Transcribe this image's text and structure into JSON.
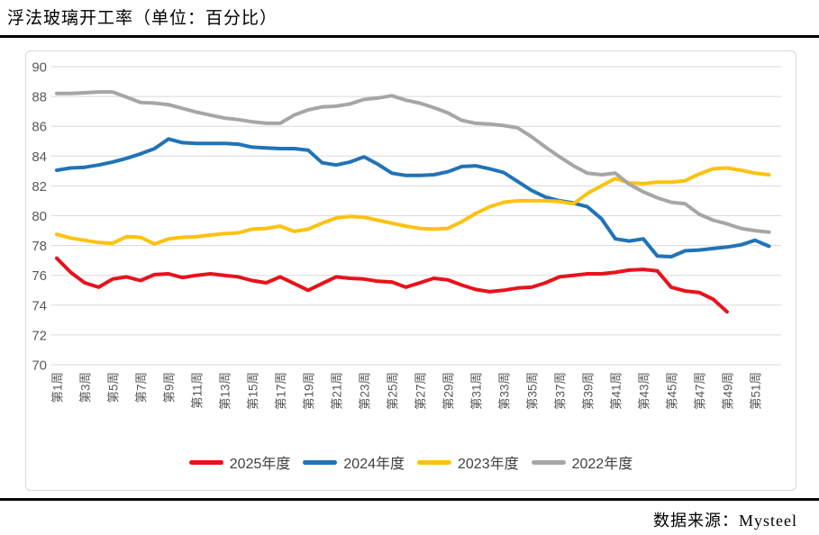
{
  "page": {
    "title": "浮法玻璃开工率（单位：百分比）",
    "source": "数据来源：Mysteel"
  },
  "chart_data": {
    "type": "line",
    "title": "浮法玻璃开工率（单位：百分比）",
    "ylabel": "",
    "xlabel": "",
    "ylim": [
      70,
      90
    ],
    "y_ticks": [
      90,
      88,
      86,
      84,
      82,
      80,
      78,
      76,
      74,
      72,
      70
    ],
    "x_tick_labels": [
      "第1周",
      "第3周",
      "第5周",
      "第7周",
      "第9周",
      "第11周",
      "第13周",
      "第15周",
      "第17周",
      "第19周",
      "第21周",
      "第23周",
      "第25周",
      "第27周",
      "第29周",
      "第31周",
      "第33周",
      "第35周",
      "第37周",
      "第39周",
      "第41周",
      "第43周",
      "第45周",
      "第47周",
      "第49周",
      "第51周"
    ],
    "x_weeks": 52,
    "grid": "horizontal",
    "grid_color": "#dadada",
    "tick_color": "#595959",
    "legend_position": "bottom",
    "series": [
      {
        "name": "2025年度",
        "color": "#e8121c",
        "start_week": 1,
        "values": [
          77.15,
          76.2,
          75.5,
          75.2,
          75.75,
          75.9,
          75.65,
          76.05,
          76.1,
          75.85,
          76.0,
          76.1,
          76.0,
          75.9,
          75.65,
          75.5,
          75.9,
          75.45,
          75.0,
          75.45,
          75.9,
          75.8,
          75.75,
          75.6,
          75.55,
          75.2,
          75.5,
          75.8,
          75.7,
          75.35,
          75.05,
          74.9,
          75.0,
          75.15,
          75.2,
          75.5,
          75.9,
          76.0,
          76.1,
          76.1,
          76.2,
          76.35,
          76.4,
          76.3,
          75.2,
          74.95,
          74.85,
          74.4,
          73.55
        ]
      },
      {
        "name": "2024年度",
        "color": "#2173b6",
        "start_week": 1,
        "values": [
          83.05,
          83.2,
          83.25,
          83.4,
          83.6,
          83.85,
          84.15,
          84.5,
          85.15,
          84.9,
          84.85,
          84.85,
          84.85,
          84.8,
          84.6,
          84.55,
          84.5,
          84.5,
          84.4,
          83.55,
          83.4,
          83.6,
          83.95,
          83.45,
          82.85,
          82.7,
          82.7,
          82.75,
          82.95,
          83.3,
          83.35,
          83.15,
          82.9,
          82.3,
          81.7,
          81.25,
          81.0,
          80.85,
          80.6,
          79.8,
          78.45,
          78.3,
          78.45,
          77.3,
          77.25,
          77.65,
          77.7,
          77.8,
          77.9,
          78.05,
          78.35,
          77.95
        ]
      },
      {
        "name": "2023年度",
        "color": "#fdc20f",
        "start_week": 1,
        "values": [
          78.75,
          78.5,
          78.35,
          78.2,
          78.15,
          78.6,
          78.55,
          78.1,
          78.45,
          78.55,
          78.6,
          78.7,
          78.8,
          78.85,
          79.1,
          79.15,
          79.3,
          78.95,
          79.1,
          79.5,
          79.85,
          79.95,
          79.9,
          79.7,
          79.5,
          79.3,
          79.15,
          79.1,
          79.15,
          79.6,
          80.15,
          80.6,
          80.9,
          81.0,
          81.0,
          81.0,
          80.95,
          80.8,
          81.5,
          82.0,
          82.5,
          82.2,
          82.15,
          82.25,
          82.25,
          82.35,
          82.8,
          83.15,
          83.2,
          83.05,
          82.85,
          82.75
        ]
      },
      {
        "name": "2022年度",
        "color": "#a6a6a6",
        "start_week": 1,
        "values": [
          88.2,
          88.2,
          88.25,
          88.3,
          88.3,
          87.95,
          87.6,
          87.55,
          87.45,
          87.2,
          86.95,
          86.75,
          86.55,
          86.45,
          86.3,
          86.2,
          86.2,
          86.75,
          87.1,
          87.3,
          87.35,
          87.5,
          87.8,
          87.9,
          88.05,
          87.75,
          87.55,
          87.25,
          86.9,
          86.4,
          86.2,
          86.15,
          86.05,
          85.9,
          85.3,
          84.6,
          83.95,
          83.35,
          82.85,
          82.75,
          82.85,
          82.1,
          81.6,
          81.2,
          80.9,
          80.8,
          80.1,
          79.7,
          79.45,
          79.15,
          79.0,
          78.9
        ]
      }
    ]
  }
}
